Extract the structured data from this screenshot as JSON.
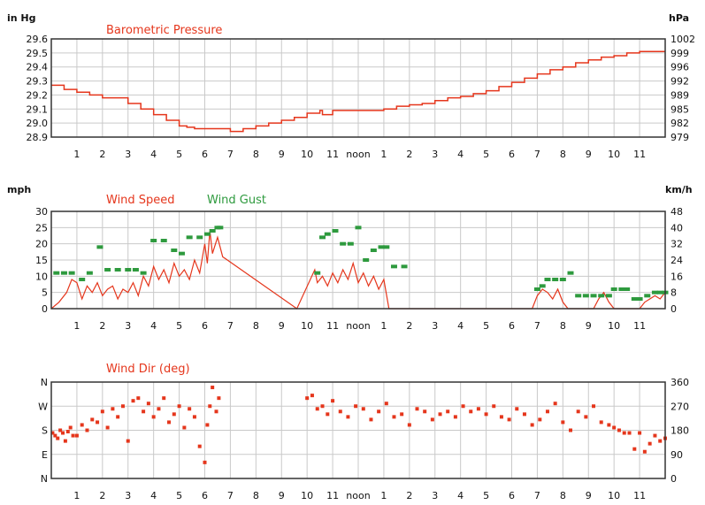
{
  "colors": {
    "red": "#e5361c",
    "green": "#2e9a3e",
    "grid": "#c9c9c9",
    "border": "#333333"
  },
  "hour_labels": [
    "1",
    "2",
    "3",
    "4",
    "5",
    "6",
    "7",
    "8",
    "9",
    "10",
    "11",
    "noon",
    "1",
    "2",
    "3",
    "4",
    "5",
    "6",
    "7",
    "8",
    "9",
    "10",
    "11"
  ],
  "pressure": {
    "title": "Barometric Pressure",
    "left_unit": "in Hg",
    "right_unit": "hPa",
    "left_ticks": [
      "29.6",
      "29.5",
      "29.4",
      "29.3",
      "29.2",
      "29.1",
      "29.0",
      "28.9"
    ],
    "right_ticks": [
      "1002",
      "999",
      "996",
      "992",
      "989",
      "985",
      "982",
      "979"
    ]
  },
  "wind": {
    "title_speed": "Wind Speed",
    "title_gust": "Wind Gust",
    "left_unit": "mph",
    "right_unit": "km/h",
    "left_ticks": [
      "30",
      "25",
      "20",
      "15",
      "10",
      "5",
      "0"
    ],
    "right_ticks": [
      "48",
      "40",
      "32",
      "24",
      "16",
      "8",
      "0"
    ]
  },
  "direction": {
    "title": "Wind Dir (deg)",
    "left_ticks": [
      "N",
      "W",
      "S",
      "E",
      "N"
    ],
    "right_ticks": [
      "360",
      "270",
      "180",
      "90",
      "0"
    ]
  },
  "chart_data": [
    {
      "type": "line",
      "title": "Barometric Pressure",
      "ylabel": "in Hg",
      "ylabel_right": "hPa",
      "xlabel": "",
      "x_unit": "hour of day",
      "xlim": [
        0,
        24
      ],
      "ylim": [
        28.9,
        29.6
      ],
      "grid": true,
      "series": [
        {
          "name": "Barometric Pressure",
          "color": "#e5361c",
          "x": [
            0,
            0.5,
            1,
            1.5,
            2,
            3,
            3.5,
            4,
            4.5,
            5,
            5.3,
            5.6,
            6,
            6.5,
            7,
            7.5,
            8,
            8.5,
            9,
            9.5,
            10,
            10.5,
            10.6,
            11,
            11.5,
            12,
            12.5,
            13,
            13.5,
            14,
            14.5,
            15,
            15.5,
            16,
            16.5,
            17,
            17.5,
            18,
            18.5,
            19,
            19.5,
            20,
            20.5,
            21,
            21.5,
            22,
            22.5,
            23,
            23.5,
            24
          ],
          "y": [
            29.27,
            29.24,
            29.22,
            29.2,
            29.18,
            29.14,
            29.1,
            29.06,
            29.02,
            28.98,
            28.97,
            28.96,
            28.96,
            28.96,
            28.94,
            28.96,
            28.98,
            29.0,
            29.02,
            29.04,
            29.07,
            29.09,
            29.06,
            29.09,
            29.09,
            29.09,
            29.09,
            29.1,
            29.12,
            29.13,
            29.14,
            29.16,
            29.18,
            29.19,
            29.21,
            29.23,
            29.26,
            29.29,
            29.32,
            29.35,
            29.38,
            29.4,
            29.43,
            29.45,
            29.47,
            29.48,
            29.5,
            29.51,
            29.51,
            29.51
          ]
        }
      ]
    },
    {
      "type": "line",
      "title": "Wind Speed / Wind Gust",
      "ylabel": "mph",
      "ylabel_right": "km/h",
      "xlabel": "",
      "x_unit": "hour of day",
      "xlim": [
        0,
        24
      ],
      "ylim": [
        0,
        30
      ],
      "grid": true,
      "series": [
        {
          "name": "Wind Speed",
          "color": "#e5361c",
          "x": [
            0,
            0.3,
            0.6,
            0.8,
            1,
            1.2,
            1.4,
            1.6,
            1.8,
            2,
            2.2,
            2.4,
            2.6,
            2.8,
            3,
            3.2,
            3.4,
            3.6,
            3.8,
            4,
            4.2,
            4.4,
            4.6,
            4.8,
            5,
            5.2,
            5.4,
            5.6,
            5.8,
            6,
            6.1,
            6.2,
            6.3,
            6.5,
            6.7,
            9.6,
            10.3,
            10.4,
            10.6,
            10.8,
            11,
            11.2,
            11.4,
            11.6,
            11.8,
            12,
            12.2,
            12.4,
            12.6,
            12.8,
            13,
            13.2,
            18.8,
            19,
            19.2,
            19.4,
            19.6,
            19.8,
            20,
            20.2,
            20.4,
            20.6,
            20.8,
            21,
            21.2,
            21.4,
            21.6,
            21.8,
            22,
            22.2,
            22.4,
            22.6,
            22.8,
            23,
            23.2,
            23.4,
            23.6,
            23.8,
            24
          ],
          "y": [
            0,
            2,
            5,
            9,
            8,
            3,
            7,
            5,
            8,
            4,
            6,
            7,
            3,
            6,
            5,
            8,
            4,
            10,
            7,
            13,
            9,
            12,
            8,
            14,
            10,
            12,
            9,
            15,
            11,
            20,
            14,
            24,
            17,
            22,
            16,
            0,
            12,
            8,
            10,
            7,
            11,
            8,
            12,
            9,
            14,
            8,
            11,
            7,
            10,
            6,
            9,
            0,
            0,
            4,
            6,
            5,
            3,
            6,
            2,
            0,
            0,
            0,
            0,
            0,
            0,
            3,
            5,
            2,
            0,
            0,
            0,
            0,
            0,
            0,
            2,
            3,
            4,
            3,
            5
          ]
        },
        {
          "name": "Wind Gust",
          "color": "#2e9a3e",
          "x": [
            0.2,
            0.5,
            0.8,
            1.2,
            1.5,
            1.9,
            2.2,
            2.6,
            3,
            3.3,
            3.6,
            4,
            4.4,
            4.8,
            5.1,
            5.4,
            5.8,
            6.1,
            6.3,
            6.5,
            6.6,
            10.4,
            10.6,
            10.8,
            11.1,
            11.4,
            11.7,
            12,
            12.3,
            12.6,
            12.9,
            13.1,
            13.4,
            13.8,
            19,
            19.2,
            19.4,
            19.7,
            20,
            20.3,
            20.6,
            20.9,
            21.2,
            21.5,
            21.8,
            22,
            22.3,
            22.5,
            22.8,
            23,
            23.3,
            23.6,
            23.8,
            24
          ],
          "y": [
            11,
            11,
            11,
            9,
            11,
            19,
            12,
            12,
            12,
            12,
            11,
            21,
            21,
            18,
            17,
            22,
            22,
            23,
            24,
            25,
            25,
            11,
            22,
            23,
            24,
            20,
            20,
            25,
            15,
            18,
            19,
            19,
            13,
            13,
            6,
            7,
            9,
            9,
            9,
            11,
            4,
            4,
            4,
            4,
            4,
            6,
            6,
            6,
            3,
            3,
            4,
            5,
            5,
            5
          ]
        }
      ]
    },
    {
      "type": "scatter",
      "title": "Wind Dir (deg)",
      "ylabel": "",
      "ylabel_right": "",
      "xlabel": "",
      "x_unit": "hour of day",
      "xlim": [
        0,
        24
      ],
      "ylim": [
        0,
        360
      ],
      "y_tick_labels_left": [
        "N",
        "W",
        "S",
        "E",
        "N"
      ],
      "y_tick_labels_right": [
        "360",
        "270",
        "180",
        "90",
        "0"
      ],
      "grid": true,
      "series": [
        {
          "name": "Wind Dir (deg)",
          "color": "#e5361c",
          "x": [
            0.05,
            0.15,
            0.25,
            0.35,
            0.45,
            0.55,
            0.65,
            0.75,
            0.85,
            1.0,
            1.2,
            1.4,
            1.6,
            1.8,
            2.0,
            2.2,
            2.4,
            2.6,
            2.8,
            3.0,
            3.2,
            3.4,
            3.6,
            3.8,
            4.0,
            4.2,
            4.4,
            4.6,
            4.8,
            5.0,
            5.2,
            5.4,
            5.6,
            5.8,
            6.0,
            6.1,
            6.2,
            6.3,
            6.45,
            6.55,
            10.0,
            10.2,
            10.4,
            10.6,
            10.8,
            11.0,
            11.3,
            11.6,
            11.9,
            12.2,
            12.5,
            12.8,
            13.1,
            13.4,
            13.7,
            14.0,
            14.3,
            14.6,
            14.9,
            15.2,
            15.5,
            15.8,
            16.1,
            16.4,
            16.7,
            17.0,
            17.3,
            17.6,
            17.9,
            18.2,
            18.5,
            18.8,
            19.1,
            19.4,
            19.7,
            20.0,
            20.3,
            20.6,
            20.9,
            21.2,
            21.5,
            21.8,
            22.0,
            22.2,
            22.4,
            22.6,
            22.8,
            23.0,
            23.2,
            23.4,
            23.6,
            23.8,
            24.0
          ],
          "y": [
            170,
            160,
            150,
            180,
            170,
            140,
            175,
            190,
            160,
            160,
            200,
            180,
            220,
            210,
            250,
            190,
            260,
            230,
            270,
            140,
            290,
            300,
            250,
            280,
            230,
            260,
            300,
            210,
            240,
            270,
            190,
            260,
            230,
            120,
            60,
            200,
            270,
            340,
            250,
            300,
            300,
            310,
            260,
            270,
            240,
            290,
            250,
            230,
            270,
            260,
            220,
            250,
            280,
            230,
            240,
            200,
            260,
            250,
            220,
            240,
            250,
            230,
            270,
            250,
            260,
            240,
            270,
            230,
            220,
            260,
            240,
            200,
            220,
            250,
            280,
            210,
            180,
            250,
            230,
            270,
            210,
            200,
            190,
            180,
            170,
            170,
            110,
            170,
            100,
            130,
            160,
            140,
            150
          ]
        }
      ]
    }
  ]
}
